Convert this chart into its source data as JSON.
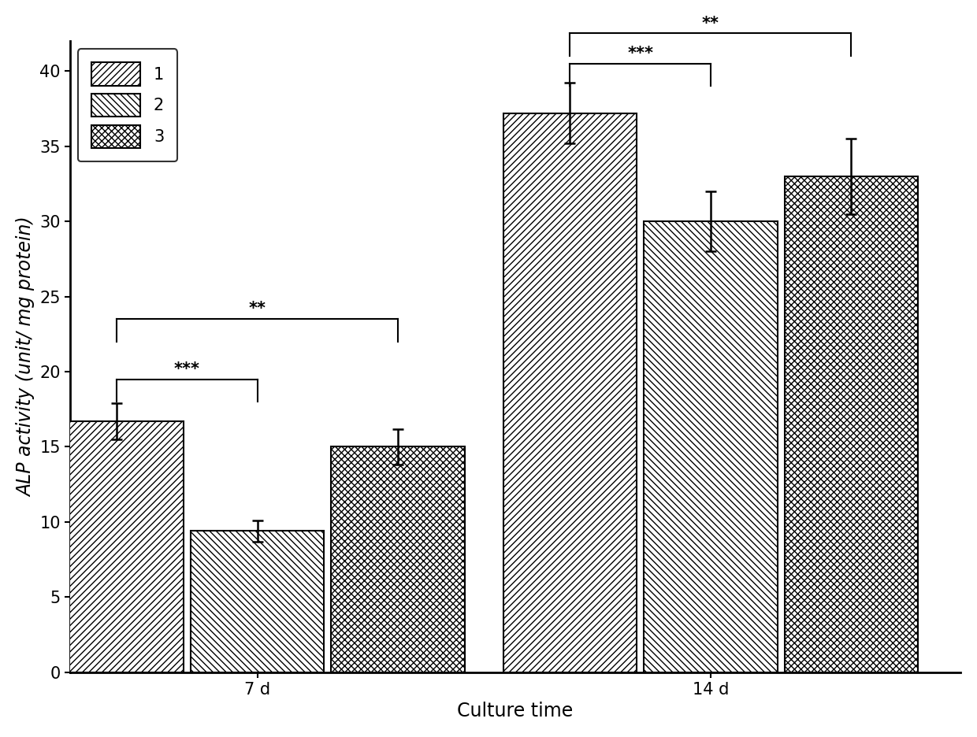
{
  "groups": [
    "7 d",
    "14 d"
  ],
  "series": [
    "1",
    "2",
    "3"
  ],
  "values": [
    [
      16.7,
      9.4,
      15.0
    ],
    [
      37.2,
      30.0,
      33.0
    ]
  ],
  "errors": [
    [
      1.2,
      0.7,
      1.2
    ],
    [
      2.0,
      2.0,
      2.5
    ]
  ],
  "xlabel": "Culture time",
  "ylabel": "ALP activity (unit/ mg protein)",
  "ylim": [
    0,
    42
  ],
  "yticks": [
    0,
    5,
    10,
    15,
    20,
    25,
    30,
    35,
    40
  ],
  "bar_width": 0.18,
  "group_centers": [
    0.32,
    0.9
  ],
  "hatch_patterns": [
    "////",
    "\\\\\\\\",
    "xxxx"
  ],
  "face_color": "#ffffff",
  "edge_color": "#000000",
  "background_color": "#ffffff",
  "fontsize_axis_label": 17,
  "fontsize_tick": 15,
  "fontsize_legend": 15,
  "fontsize_annotation": 15
}
